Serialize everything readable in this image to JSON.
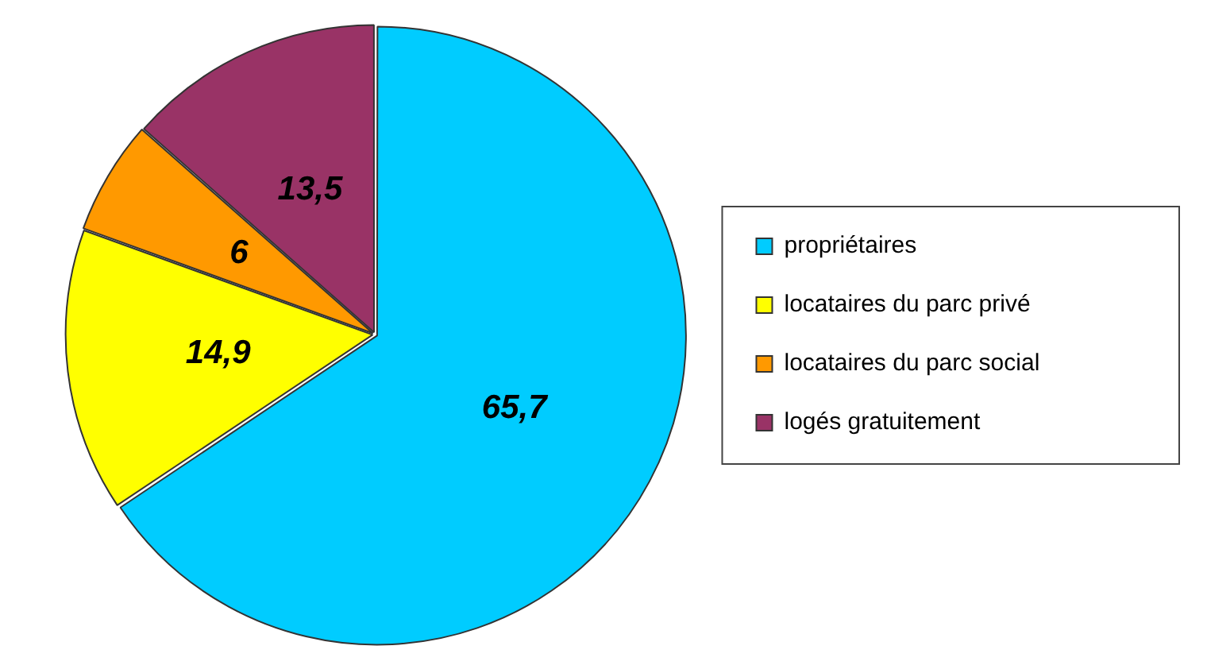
{
  "chart_data": {
    "type": "pie",
    "categories": [
      "propriétaires",
      "locataires du parc privé",
      "locataires du parc social",
      "logés gratuitement"
    ],
    "values": [
      65.7,
      14.9,
      6,
      13.5
    ],
    "value_labels": [
      "65,7",
      "14,9",
      "6",
      "13,5"
    ],
    "colors": [
      "#00ccff",
      "#ffff00",
      "#ff9900",
      "#993366"
    ],
    "legend": "right"
  }
}
